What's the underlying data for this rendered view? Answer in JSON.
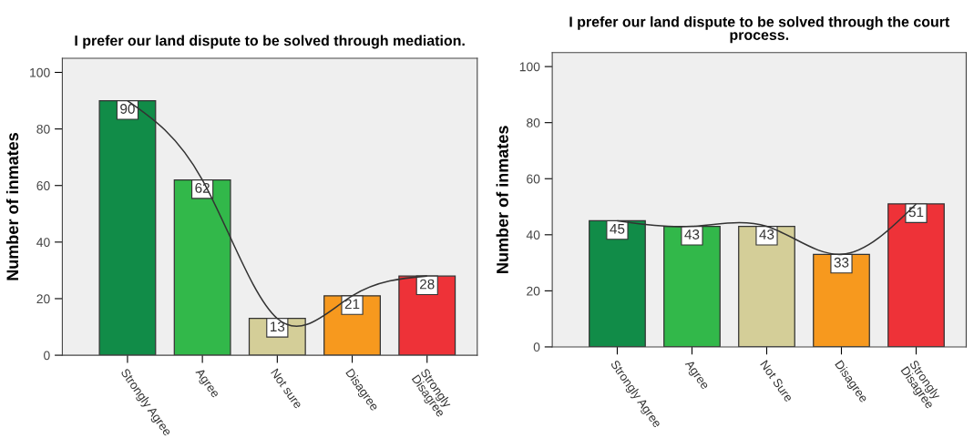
{
  "chart_data": [
    {
      "type": "bar",
      "title": "I prefer our land dispute to be solved through mediation.",
      "ylabel": "Number of inmates",
      "categories": [
        "Strongly Agree",
        "Agree",
        "Not sure",
        "Disagree",
        "Strongly\nDisagree"
      ],
      "series": [
        {
          "colors": [
            "#118c48",
            "#32b84a",
            "#d4ce98",
            "#f7991e",
            "#ee3238"
          ],
          "values": [
            90,
            62,
            13,
            21,
            28
          ]
        },
        {
          "type": "line",
          "color": "#333333",
          "values": [
            90,
            62,
            13,
            21,
            28
          ],
          "value_labels": [
            null,
            null,
            null,
            null,
            null
          ]
        }
      ],
      "ylim": [
        0,
        105
      ],
      "yticks": [
        0,
        20,
        40,
        60,
        80,
        100
      ],
      "data_labels": true,
      "grid": false,
      "legend": false
    },
    {
      "type": "bar",
      "title": "I prefer our land dispute to be solved through the court\nprocess.",
      "ylabel": "Number of inmates",
      "categories": [
        "Strongly Agree",
        "Agree",
        "Not Sure",
        "Disagree",
        "Strongly\nDisagree"
      ],
      "series": [
        {
          "colors": [
            "#118c48",
            "#32b84a",
            "#d4ce98",
            "#f7991e",
            "#ee3238"
          ],
          "values": [
            45,
            43,
            43,
            33,
            51
          ]
        },
        {
          "type": "line",
          "color": "#333333",
          "values": [
            45,
            43,
            43,
            33,
            51
          ],
          "value_labels": [
            null,
            null,
            null,
            null,
            null
          ]
        }
      ],
      "ylim": [
        0,
        105
      ],
      "yticks": [
        0,
        20,
        40,
        60,
        80,
        100
      ],
      "data_labels": true,
      "grid": false,
      "legend": false
    }
  ]
}
